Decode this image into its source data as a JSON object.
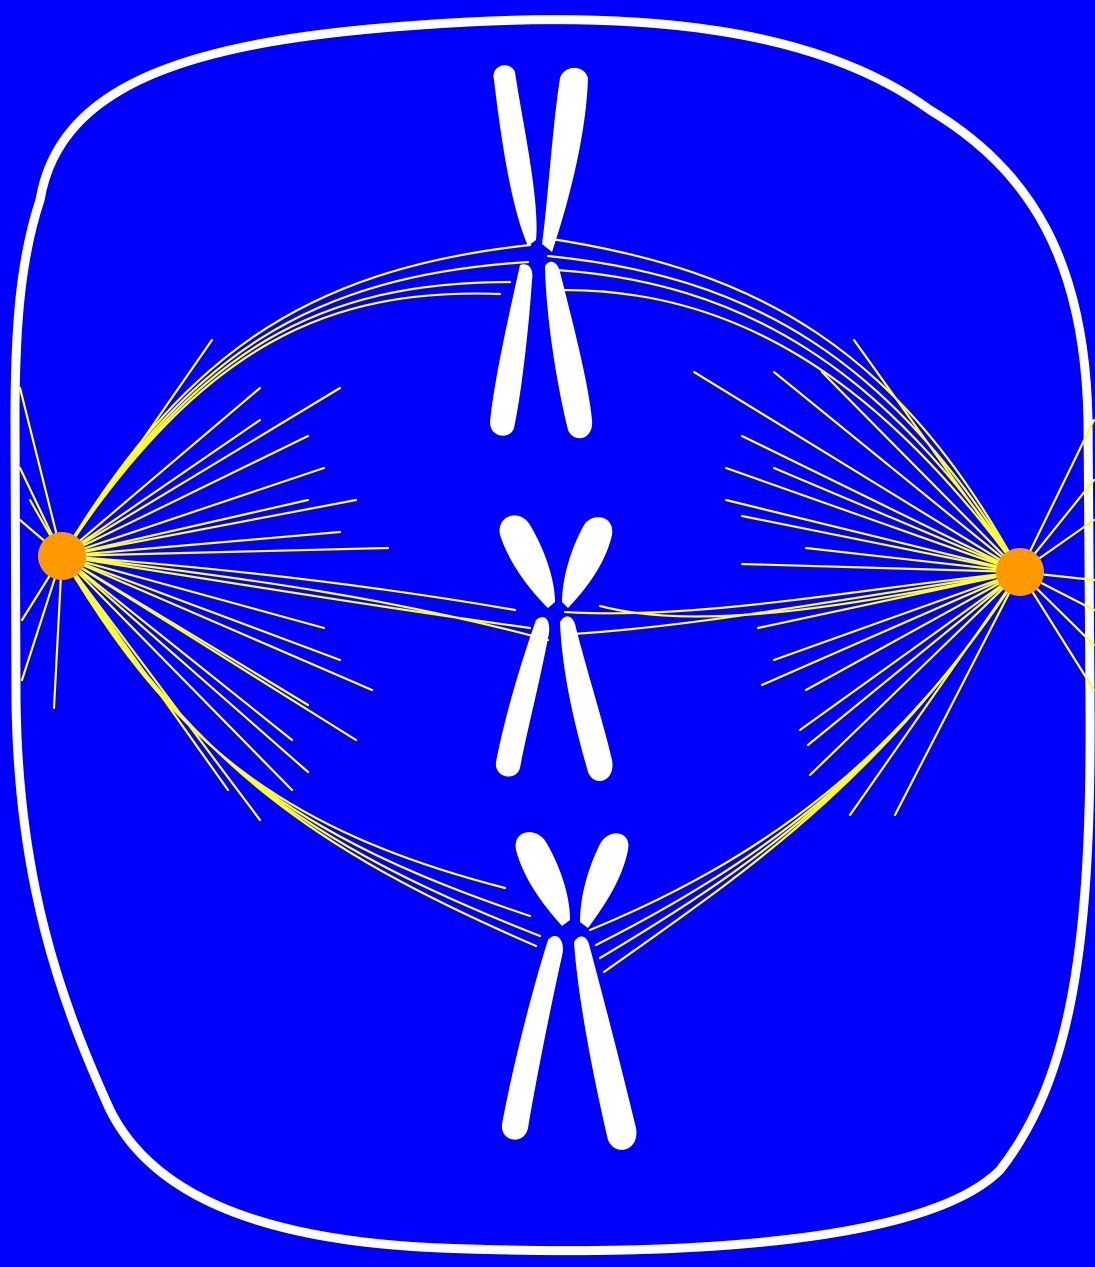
{
  "diagram": {
    "subject": "metaphase",
    "colors": {
      "background": "#0000FF",
      "cell_membrane": "#FFFFFF",
      "chromosome": "#FFFFFF",
      "spindle_fiber": "#FFFF33",
      "centrosome": "#FF9900"
    },
    "chromosome_count": 3,
    "centrosome_count": 2
  }
}
